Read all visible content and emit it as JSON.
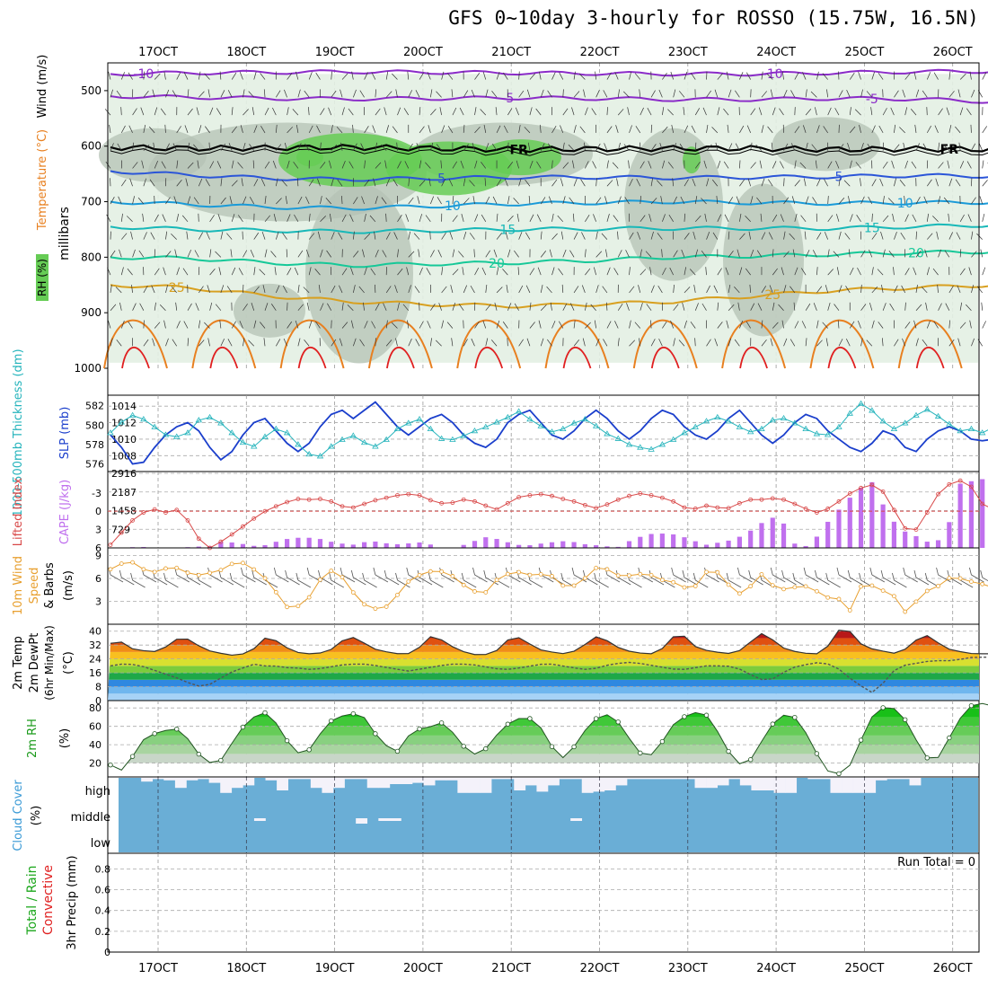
{
  "title": "GFS 0~10day 3-hourly for ROSSO (15.75W, 16.5N)",
  "colors": {
    "rh_light": "#e3f0e3",
    "rh_gray": "#b4c2b4",
    "rh_green": "#66cc55",
    "freezing": "#000000",
    "temp_cold": "#8a2bc8",
    "temp_mid": "#2b55d8",
    "temp_light": "#1a9ad8",
    "temp_cyan": "#18b8b8",
    "temp_teal": "#16c898",
    "temp_gold": "#d8a020",
    "temp_orange": "#e88020",
    "temp_red": "#e02020",
    "slp": "#1b3fcc",
    "thickness": "#26b4bc",
    "cape": "#c070ee",
    "li": "#d84848",
    "wind10m": "#e8a030",
    "cloud": "#6aaed6",
    "cloud_clear": "#f4f2fa"
  },
  "chart_data": {
    "type": "meteogram",
    "time_axis": {
      "labels": [
        "17OCT",
        "18OCT",
        "19OCT",
        "20OCT",
        "21OCT",
        "22OCT",
        "23OCT",
        "24OCT",
        "25OCT",
        "26OCT"
      ],
      "label_day_index": [
        0,
        1,
        2,
        3,
        4,
        5,
        6,
        7,
        8,
        9
      ],
      "steps": 81,
      "step_hours": 3
    },
    "profile": {
      "ylabel_parts": [
        "RH (%)",
        "Temperature (°C)",
        "Wind (m/s)"
      ],
      "yunits": "millibars",
      "levels": [
        500,
        600,
        700,
        800,
        900,
        1000
      ],
      "ylim": [
        450,
        1000
      ],
      "freezing_label": "FR",
      "isotherms": [
        {
          "label": "-10",
          "pressure": [
            470,
            468,
            467,
            466,
            467,
            468,
            469,
            470,
            470,
            468,
            466,
            465
          ],
          "label_step": [
            3,
            60
          ]
        },
        {
          "label": "-5",
          "pressure": [
            510,
            512,
            514,
            515,
            514,
            513,
            514,
            516,
            516,
            514,
            515,
            520
          ],
          "label_step": [
            36,
            69
          ]
        },
        {
          "label": "FR",
          "pressure": [
            602,
            604,
            603,
            602,
            604,
            606,
            605,
            604,
            604,
            606,
            605,
            606
          ],
          "label_step": [
            37,
            76
          ]
        },
        {
          "label": "5",
          "pressure": [
            645,
            652,
            658,
            660,
            658,
            656,
            656,
            657,
            656,
            655,
            653,
            654
          ],
          "label_step": [
            30,
            66
          ]
        },
        {
          "label": "10",
          "pressure": [
            700,
            705,
            710,
            712,
            708,
            704,
            702,
            700,
            702,
            703,
            702,
            701
          ],
          "label_step": [
            31,
            72
          ]
        },
        {
          "label": "15",
          "pressure": [
            745,
            750,
            752,
            754,
            752,
            750,
            749,
            748,
            748,
            748,
            745,
            742
          ],
          "label_step": [
            36,
            69
          ]
        },
        {
          "label": "20",
          "pressure": [
            800,
            802,
            810,
            815,
            812,
            810,
            806,
            800,
            798,
            795,
            792,
            790
          ],
          "label_step": [
            35,
            73
          ]
        },
        {
          "label": "25",
          "pressure": [
            850,
            855,
            870,
            880,
            885,
            888,
            885,
            880,
            870,
            860,
            855,
            850
          ],
          "label_step": [
            6,
            60
          ]
        }
      ]
    },
    "slp_thickness": {
      "ylabel_left": "1000-500mb Thickness (dm)",
      "ylabel_right": "SLP (mb)",
      "thickness_ticks": [
        576,
        578,
        580,
        582
      ],
      "slp_ticks": [
        1008,
        1010,
        1012,
        1014
      ],
      "thickness_ylim": [
        575.5,
        582.8
      ],
      "slp_ylim": [
        1006.4,
        1015.0
      ],
      "slp": [
        1010.5,
        1009,
        1007,
        1007.2,
        1009,
        1010.5,
        1011.5,
        1012,
        1011,
        1009,
        1007.5,
        1008.5,
        1010.5,
        1012,
        1012.5,
        1011,
        1009.5,
        1008.5,
        1009.5,
        1011.5,
        1013,
        1013.5,
        1012.5,
        1013.5,
        1014.5,
        1013,
        1011.5,
        1010.5,
        1011.5,
        1012.5,
        1013,
        1012,
        1010.5,
        1009.5,
        1009,
        1010,
        1012,
        1013,
        1013.5,
        1012,
        1010.5,
        1010,
        1011,
        1012.5,
        1013.5,
        1012.5,
        1011,
        1010,
        1011,
        1012.5,
        1013.5,
        1013,
        1011.5,
        1010.5,
        1010,
        1011,
        1012.5,
        1013.5,
        1012,
        1010.5,
        1009.5,
        1010.5,
        1012,
        1013,
        1012.5,
        1011,
        1010,
        1009,
        1008.5,
        1009.5,
        1011,
        1010.5,
        1009,
        1008.5,
        1010,
        1011,
        1011.5,
        1011,
        1010,
        1009.8,
        1010
      ],
      "thickness": [
        579.2,
        580.3,
        581,
        580.6,
        579.8,
        579,
        578.8,
        579.2,
        580.5,
        580.8,
        580.2,
        579.2,
        578.2,
        577.8,
        578.8,
        579.6,
        579.2,
        578,
        577,
        576.8,
        577.8,
        578.5,
        578.9,
        578.2,
        577.8,
        578.5,
        579.6,
        580.2,
        580.6,
        579.6,
        578.6,
        578.5,
        578.9,
        579.4,
        579.8,
        580.3,
        580.8,
        581.4,
        580.6,
        579.9,
        579.3,
        579.6,
        580.2,
        580.6,
        579.9,
        579.1,
        578.6,
        578,
        577.7,
        577.5,
        578,
        578.5,
        579.2,
        579.8,
        580.4,
        580.8,
        580.4,
        579.8,
        579.3,
        579.6,
        580.5,
        580.7,
        580.2,
        579.6,
        579.1,
        579,
        579.8,
        581.2,
        582.2,
        581.5,
        580.4,
        579.6,
        580.2,
        581,
        581.6,
        580.9,
        580.1,
        579.4,
        579.6,
        579.2,
        579.8
      ]
    },
    "cape_li": {
      "ylabel_left": "Lifted Index",
      "ylabel_right": "CAPE (J/kg)",
      "li_ticks": [
        -3,
        0,
        3,
        6
      ],
      "li_labels": [
        "-3",
        "0",
        "3",
        "6"
      ],
      "li_ylim": [
        6,
        -6.2
      ],
      "cape_ticks": [
        729,
        1458,
        2187,
        2916
      ],
      "cape_labels": [
        "729",
        "1458",
        "2187",
        "2916"
      ],
      "cape_ylim": [
        0,
        2916
      ],
      "li": [
        5.5,
        3.5,
        1.5,
        0.2,
        -0.3,
        0.2,
        -0.2,
        1.5,
        4.5,
        6,
        5,
        3.8,
        2.5,
        1.2,
        0,
        -0.8,
        -1.5,
        -2,
        -1.9,
        -2,
        -1.6,
        -0.8,
        -0.6,
        -1.2,
        -1.8,
        -2.2,
        -2.6,
        -2.8,
        -2.6,
        -1.8,
        -1.3,
        -1.4,
        -1.9,
        -1.6,
        -0.9,
        -0.3,
        -1.3,
        -2.3,
        -2.6,
        -2.8,
        -2.5,
        -2,
        -1.6,
        -1,
        -0.5,
        -1.1,
        -1.9,
        -2.5,
        -2.9,
        -2.6,
        -2.2,
        -1.6,
        -0.6,
        -0.4,
        -0.9,
        -0.6,
        -0.5,
        -1.3,
        -1.9,
        -1.9,
        -2.1,
        -1.9,
        -1.2,
        -0.4,
        0.2,
        -0.4,
        -1.6,
        -2.9,
        -3.8,
        -4.3,
        -3.2,
        -0.2,
        2.8,
        3,
        0.2,
        -2.8,
        -4.4,
        -5,
        -4,
        -1.2,
        -0.3
      ],
      "cape": [
        0,
        0,
        20,
        40,
        30,
        0,
        0,
        0,
        20,
        40,
        60,
        60,
        240,
        220,
        180,
        110,
        60,
        120,
        240,
        340,
        380,
        420,
        380,
        340,
        240,
        180,
        120,
        140,
        280,
        240,
        180,
        140,
        160,
        200,
        220,
        110,
        0,
        0,
        60,
        200,
        320,
        440,
        350,
        240,
        140,
        80,
        120,
        180,
        220,
        260,
        260,
        180,
        120,
        100,
        60,
        0,
        200,
        360,
        480,
        560,
        560,
        540,
        480,
        320,
        220,
        100,
        200,
        260,
        380,
        520,
        780,
        1020,
        1180,
        1120,
        280,
        0,
        120,
        520,
        1020,
        1420,
        1800,
        2210,
        2450,
        2600,
        1700,
        1100,
        720,
        520,
        420,
        200,
        300,
        640,
        2480,
        2560,
        2640,
        2700,
        2720
      ]
    },
    "wind10m": {
      "ylabel": "10m Wind Speed & Barbs",
      "yunits": "(m/s)",
      "ticks": [
        3,
        6,
        9
      ],
      "ylim": [
        0,
        10
      ],
      "speed": [
        7.2,
        7.8,
        8.5,
        7.5,
        7,
        6.8,
        7.3,
        7.5,
        6.9,
        6.5,
        6.4,
        6.8,
        7.1,
        7.8,
        8.3,
        7.6,
        6.9,
        5.8,
        4.2,
        2.3,
        2.1,
        2.8,
        4,
        6.3,
        7,
        6.5,
        4.8,
        3.2,
        2.2,
        2,
        2.3,
        3.5,
        5.2,
        6.2,
        6.6,
        7,
        6.9,
        6.5,
        5.5,
        4.6,
        4.1,
        4.2,
        5.8,
        6.5,
        6.9,
        6.7,
        6.3,
        6.6,
        6.3,
        5.1,
        4.9,
        5.3,
        6.5,
        7.6,
        7.2,
        6.4,
        6.3,
        6.5,
        6.6,
        6.4,
        5.8,
        5.6,
        5.1,
        4.4,
        5.4,
        7.2,
        6.8,
        5.4,
        4.3,
        3.6,
        5.9,
        6.7,
        5.1,
        4.6,
        4.6,
        5.2,
        4.8,
        4.2,
        3.5,
        4,
        0.5,
        3.8,
        5.7,
        4.9,
        4.4,
        4.3,
        1.2,
        2.3,
        3.4,
        4.6,
        5,
        6,
        6.2,
        5.7,
        5.5,
        5.2,
        4.8
      ]
    },
    "temp2m": {
      "ylabel": "2m Temp 2m DewPt (6hr Min/Max) (°C)",
      "ticks": [
        0,
        8,
        16,
        24,
        32,
        40
      ],
      "ylim": [
        0,
        44
      ],
      "temp": [
        33,
        34,
        30,
        29,
        28,
        29,
        34,
        37,
        34,
        30,
        28,
        27,
        26,
        27,
        30,
        36,
        35,
        31,
        28,
        27,
        27,
        28,
        31,
        37,
        36,
        32,
        29,
        28,
        27,
        27,
        30,
        37,
        36,
        32,
        29,
        27,
        26,
        27,
        30,
        37,
        36,
        32,
        29,
        28,
        27,
        28,
        31,
        37,
        36,
        32,
        29,
        28,
        27,
        27,
        31,
        38,
        37,
        31,
        29,
        28,
        27,
        28,
        31,
        39,
        38,
        32,
        29,
        28,
        27,
        27,
        32,
        41,
        40,
        33,
        30,
        29,
        27,
        28,
        32,
        38,
        37,
        31,
        29,
        28,
        27,
        27,
        27
      ],
      "dewpt": [
        20,
        21,
        21,
        20,
        18,
        16,
        14,
        12,
        9,
        8,
        10,
        14,
        17,
        19,
        21,
        20,
        20,
        19,
        19,
        18,
        18,
        19,
        20,
        21,
        21,
        21,
        20,
        19,
        18,
        17,
        18,
        19,
        20,
        21,
        21,
        21,
        20,
        19,
        18,
        18,
        19,
        20,
        21,
        21,
        20,
        19,
        18,
        18,
        20,
        21,
        22,
        22,
        21,
        20,
        19,
        18,
        18,
        19,
        20,
        20,
        20,
        19,
        16,
        13,
        11,
        14,
        18,
        20,
        21,
        22,
        21,
        18,
        13,
        9,
        4,
        8,
        16,
        20,
        21,
        22,
        23,
        23,
        23,
        24,
        25,
        25,
        25
      ]
    },
    "rh2m": {
      "ylabel": "2m RH",
      "yunits": "(%)",
      "ticks": [
        20,
        40,
        60,
        80
      ],
      "ylim": [
        5,
        88
      ],
      "values": [
        18,
        12,
        30,
        50,
        53,
        57,
        57,
        35,
        22,
        18,
        38,
        58,
        70,
        75,
        62,
        40,
        28,
        38,
        62,
        70,
        73,
        75,
        55,
        40,
        32,
        50,
        58,
        60,
        65,
        48,
        32,
        28,
        45,
        60,
        68,
        70,
        60,
        38,
        25,
        40,
        60,
        72,
        73,
        58,
        35,
        25,
        38,
        60,
        70,
        75,
        72,
        52,
        28,
        16,
        28,
        55,
        70,
        75,
        60,
        35,
        12,
        8,
        18,
        48,
        75,
        82,
        78,
        60,
        32,
        18,
        40,
        65,
        82,
        85,
        82
      ]
    },
    "cloud": {
      "ylabel": "Cloud Cover",
      "yunits": "(%)",
      "layers": [
        "high",
        "middle",
        "low"
      ],
      "high": [
        0,
        0,
        15,
        5,
        10,
        40,
        10,
        5,
        20,
        60,
        40,
        30,
        0,
        10,
        50,
        5,
        5,
        40,
        60,
        40,
        5,
        5,
        40,
        40,
        25,
        25,
        20,
        30,
        10,
        10,
        60,
        60,
        60,
        5,
        5,
        50,
        30,
        55,
        30,
        5,
        5,
        60,
        55,
        50,
        30,
        5,
        5,
        5,
        5,
        5,
        5,
        40,
        40,
        30,
        5,
        30,
        50,
        50,
        60,
        60,
        0,
        5,
        5,
        60,
        60,
        60,
        60,
        10,
        5,
        5,
        30,
        0,
        0,
        0,
        0,
        0
      ],
      "middle": [
        0,
        0,
        0,
        0,
        0,
        0,
        0,
        0,
        0,
        0,
        0,
        0,
        10,
        0,
        0,
        0,
        0,
        0,
        0,
        0,
        0,
        20,
        0,
        10,
        10,
        0,
        0,
        0,
        0,
        0,
        0,
        0,
        0,
        0,
        0,
        0,
        0,
        0,
        0,
        0,
        10,
        0,
        0,
        0,
        0,
        0,
        0,
        0,
        0,
        0,
        0,
        0,
        0,
        0,
        0,
        0,
        0,
        0,
        0,
        0,
        0,
        0,
        0,
        0,
        0,
        0,
        0,
        0,
        0,
        0,
        0,
        0,
        0,
        0,
        0,
        0
      ],
      "low": [
        0,
        0,
        0,
        0,
        0,
        0,
        0,
        0,
        0,
        0,
        0,
        0,
        0,
        0,
        0,
        0,
        0,
        0,
        0,
        0,
        0,
        0,
        0,
        0,
        0,
        0,
        0,
        0,
        0,
        0,
        0,
        0,
        0,
        0,
        0,
        0,
        0,
        0,
        0,
        0,
        0,
        0,
        0,
        0,
        0,
        0,
        0,
        0,
        0,
        0,
        0,
        0,
        0,
        0,
        0,
        0,
        0,
        0,
        0,
        0,
        0,
        0,
        0,
        0,
        0,
        0,
        0,
        0,
        0,
        0,
        0,
        0,
        0,
        0,
        0,
        0
      ]
    },
    "precip": {
      "ylabel_parts": [
        "Total / Rain",
        "Convective",
        "3hr Precip (mm)"
      ],
      "ticks": [
        0,
        0.2,
        0.4,
        0.6,
        0.8
      ],
      "tick_labels": [
        "0",
        "0.2",
        "0.4",
        "0.6",
        "0.8"
      ],
      "ylim": [
        0,
        0.95
      ],
      "run_total_label": "Run Total = 0",
      "values": []
    }
  }
}
